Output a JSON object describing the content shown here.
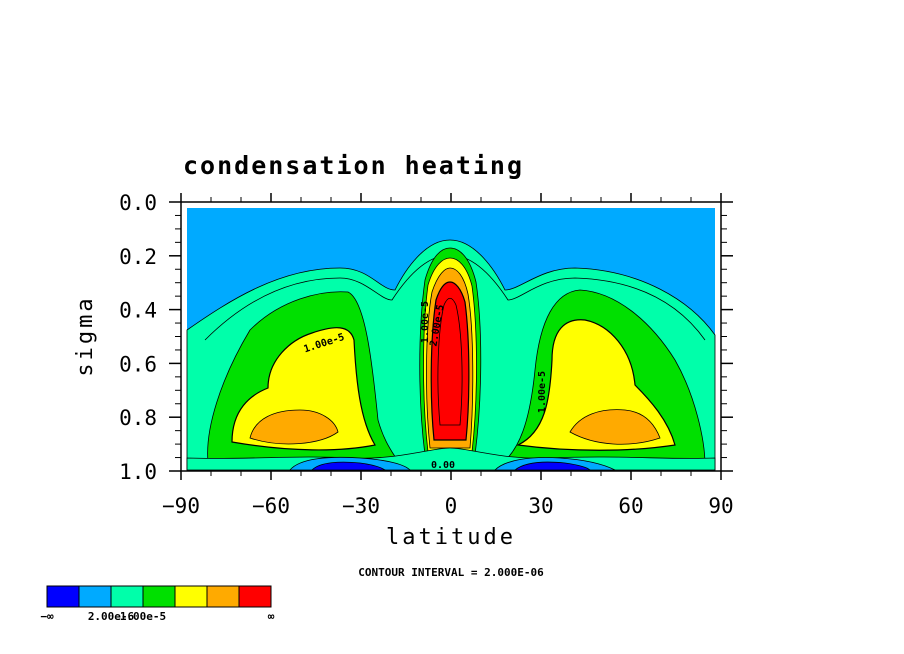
{
  "chart_data": {
    "type": "contour",
    "title": "condensation heating",
    "xlabel": "latitude",
    "ylabel": "sigma",
    "xlim": [
      -90,
      90
    ],
    "ylim": [
      1.0,
      0.0
    ],
    "x_ticks": [
      "−90",
      "−60",
      "−30",
      "0",
      "30",
      "60",
      "90"
    ],
    "y_ticks": [
      "0.0",
      "0.2",
      "0.4",
      "0.6",
      "0.8",
      "1.0"
    ],
    "contour_interval_text": "CONTOUR INTERVAL = 2.000E-06",
    "contour_labels": [
      "1.00e-5",
      "1.00e-5",
      "2.00e-5",
      "1.00e-5",
      "0.00"
    ],
    "colorbar": {
      "colors": [
        "#0000ff",
        "#00aaff",
        "#00ffaa",
        "#00e000",
        "#ffff00",
        "#ffaa00",
        "#ff0000"
      ],
      "labels": [
        "−∞",
        "2.00e-6",
        "1.00e-5",
        "∞"
      ]
    },
    "features": [
      {
        "name": "equatorial-maximum",
        "center_lat": 0,
        "center_sigma": 0.45,
        "level": "above 2.00e-5"
      },
      {
        "name": "southern-midlatitude-band",
        "center_lat": -40,
        "sigma_range": [
          0.4,
          0.92
        ]
      },
      {
        "name": "northern-midlatitude-band",
        "center_lat": 45,
        "sigma_range": [
          0.45,
          0.92
        ]
      },
      {
        "name": "near-surface-cooling-south",
        "center_lat": -35,
        "sigma": 0.98
      },
      {
        "name": "near-surface-cooling-north",
        "center_lat": 30,
        "sigma": 0.98
      }
    ]
  }
}
